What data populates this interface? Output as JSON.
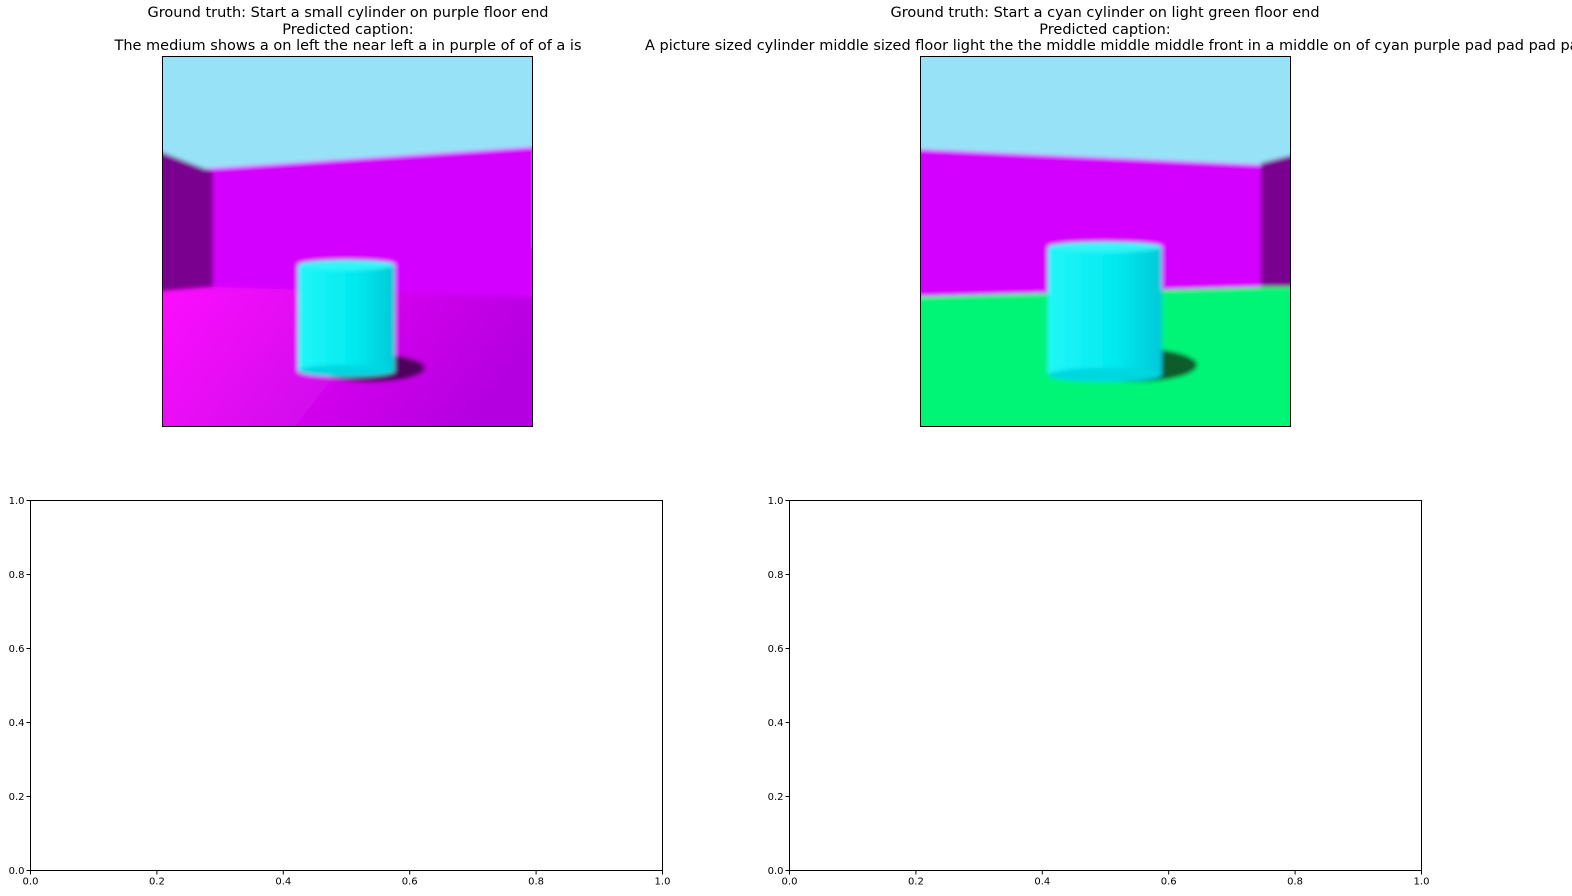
{
  "panels": [
    {
      "ground_truth": "Ground truth: Start a small cylinder on purple floor end",
      "predicted_label": "Predicted caption:",
      "predicted_caption": "The medium shows a on left the near left a in purple of of of a is"
    },
    {
      "ground_truth": "Ground truth: Start a cyan cylinder on light green floor end",
      "predicted_label": "Predicted caption:",
      "predicted_caption": "A picture sized cylinder middle sized floor light the the middle middle middle front in a middle on of cyan purple pad pad pad pad"
    }
  ],
  "scene_colors": {
    "sky": "#98e2f7",
    "wall": "#d400ff",
    "wall_side": "#7a0090",
    "floor_purple": "#dd00f4",
    "floor_green": "#00f577",
    "cylinder": "#00eaf0",
    "shadow": "#3a0044"
  },
  "chart_data": [
    {
      "type": "scatter",
      "title": "",
      "xlabel": "",
      "ylabel": "",
      "xlim": [
        0.0,
        1.0
      ],
      "ylim": [
        0.0,
        1.0
      ],
      "x_ticks": [
        "0.0",
        "0.2",
        "0.4",
        "0.6",
        "0.8",
        "1.0"
      ],
      "y_ticks": [
        "0.0",
        "0.2",
        "0.4",
        "0.6",
        "0.8",
        "1.0"
      ],
      "series": [],
      "grid": false
    },
    {
      "type": "scatter",
      "title": "",
      "xlabel": "",
      "ylabel": "",
      "xlim": [
        0.0,
        1.0
      ],
      "ylim": [
        0.0,
        1.0
      ],
      "x_ticks": [
        "0.0",
        "0.2",
        "0.4",
        "0.6",
        "0.8",
        "1.0"
      ],
      "y_ticks": [
        "0.0",
        "0.2",
        "0.4",
        "0.6",
        "0.8",
        "1.0"
      ],
      "series": [],
      "grid": false
    }
  ]
}
